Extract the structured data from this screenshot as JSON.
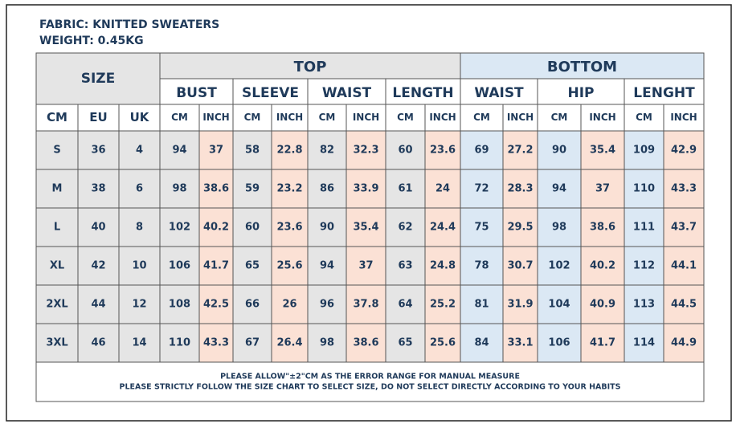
{
  "header": {
    "fabric": "FABRIC: KNITTED SWEATERS",
    "weight": "WEIGHT: 0.45KG"
  },
  "table": {
    "size_label": "SIZE",
    "groups": [
      "TOP",
      "BOTTOM"
    ],
    "measures": [
      "BUST",
      "SLEEVE",
      "WAIST",
      "LENGTH",
      "WAIST",
      "HIP",
      "LENGHT"
    ],
    "columns": [
      "CM",
      "EU",
      "UK",
      "CM",
      "INCH",
      "CM",
      "INCH",
      "CM",
      "INCH",
      "CM",
      "INCH",
      "CM",
      "INCH",
      "CM",
      "INCH",
      "CM",
      "INCH"
    ],
    "rows": [
      [
        "S",
        36,
        4,
        94,
        37,
        58,
        22.8,
        82,
        32.3,
        60,
        23.6,
        69,
        27.2,
        90,
        35.4,
        109,
        42.9
      ],
      [
        "M",
        38,
        6,
        98,
        38.6,
        59,
        23.2,
        86,
        33.9,
        61,
        24,
        72,
        28.3,
        94,
        37,
        110,
        43.3
      ],
      [
        "L",
        40,
        8,
        102,
        40.2,
        60,
        23.6,
        90,
        35.4,
        62,
        24.4,
        75,
        29.5,
        98,
        38.6,
        111,
        43.7
      ],
      [
        "XL",
        42,
        10,
        106,
        41.7,
        65,
        25.6,
        94,
        37,
        63,
        24.8,
        78,
        30.7,
        102,
        40.2,
        112,
        44.1
      ],
      [
        "2XL",
        44,
        12,
        108,
        42.5,
        66,
        26,
        96,
        37.8,
        64,
        25.2,
        81,
        31.9,
        104,
        40.9,
        113,
        44.5
      ],
      [
        "3XL",
        46,
        14,
        110,
        43.3,
        67,
        26.4,
        98,
        38.6,
        65,
        25.6,
        84,
        33.1,
        106,
        41.7,
        114,
        44.9
      ]
    ]
  },
  "footer": [
    "PLEASE ALLOW\"±2\"CM AS THE ERROR RANGE FOR MANUAL MEASURE",
    "PLEASE STRICTLY FOLLOW THE SIZE CHART TO SELECT SIZE, DO NOT SELECT DIRECTLY ACCORDING TO YOUR HABITS"
  ]
}
